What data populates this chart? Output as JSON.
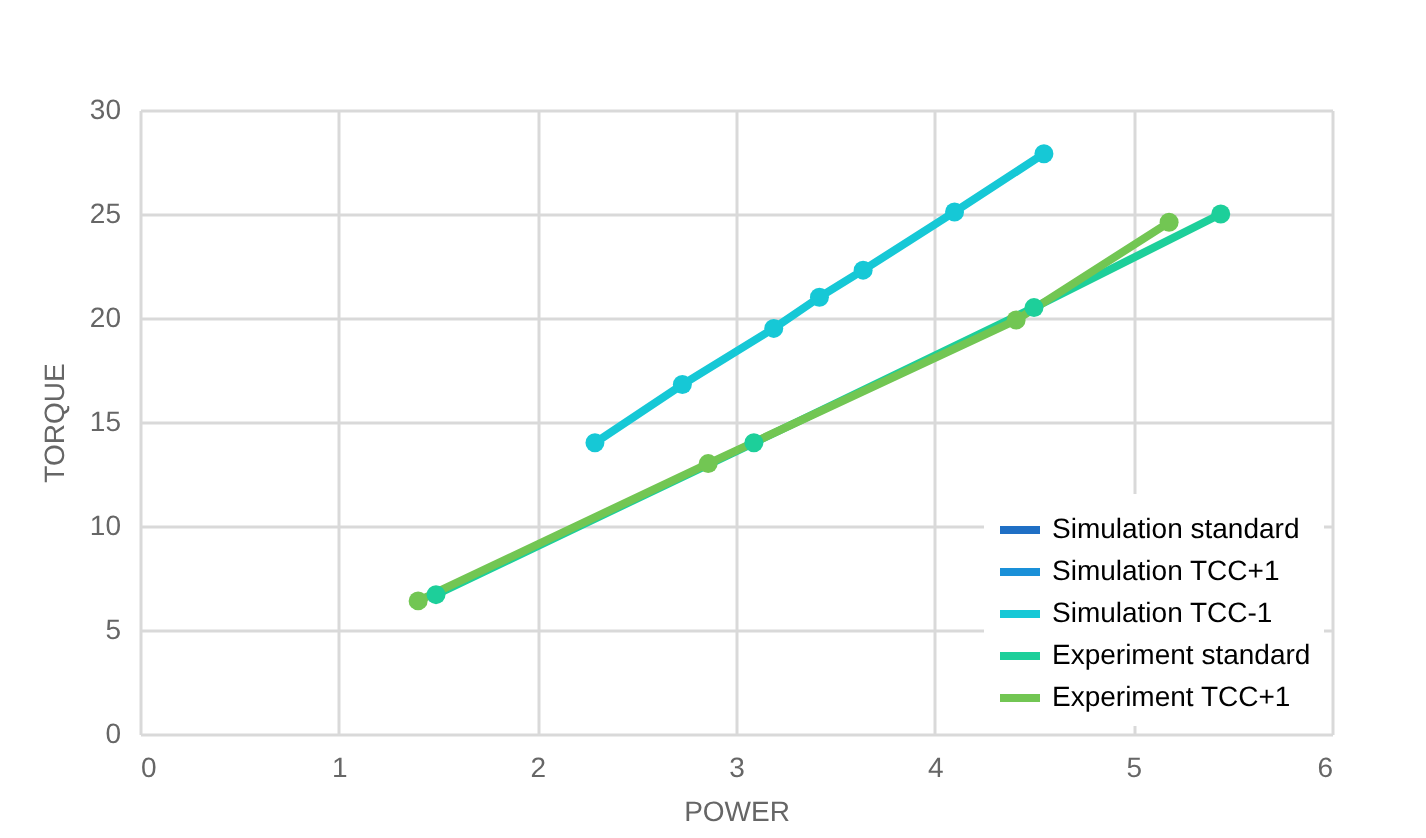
{
  "chart_data": {
    "type": "line",
    "xlabel": "POWER",
    "ylabel": "TORQUE",
    "xlim": [
      0,
      6
    ],
    "xticks": [
      0,
      1,
      2,
      3,
      4,
      5,
      6
    ],
    "ylim": [
      0,
      30
    ],
    "yticks": [
      0,
      5,
      10,
      15,
      20,
      25,
      30
    ],
    "grid": true,
    "legend": "bottom right",
    "marker": "circle",
    "line_style": "solid",
    "series": [
      {
        "name": "Simulation standard",
        "color": "#1f6fc5"
      },
      {
        "name": "Simulation TCC+1",
        "color": "#1a90d8"
      },
      {
        "name": "Simulation TCC-1",
        "color": "#16c8d6",
        "x": [
          2.29,
          2.73,
          3.19,
          3.42,
          3.64,
          4.1,
          4.55
        ],
        "values": [
          14.0,
          16.8,
          19.5,
          21.0,
          22.3,
          25.1,
          27.9
        ]
      },
      {
        "name": "Experiment standard",
        "color": "#1dcf9a",
        "x": [
          1.49,
          3.09,
          4.5,
          5.44
        ],
        "values": [
          6.7,
          14.0,
          20.5,
          25.0
        ]
      },
      {
        "name": "Experiment TCC+1",
        "color": "#72c653",
        "x": [
          1.4,
          2.86,
          4.41,
          5.18
        ],
        "values": [
          6.4,
          13.0,
          19.9,
          24.6
        ]
      }
    ]
  }
}
